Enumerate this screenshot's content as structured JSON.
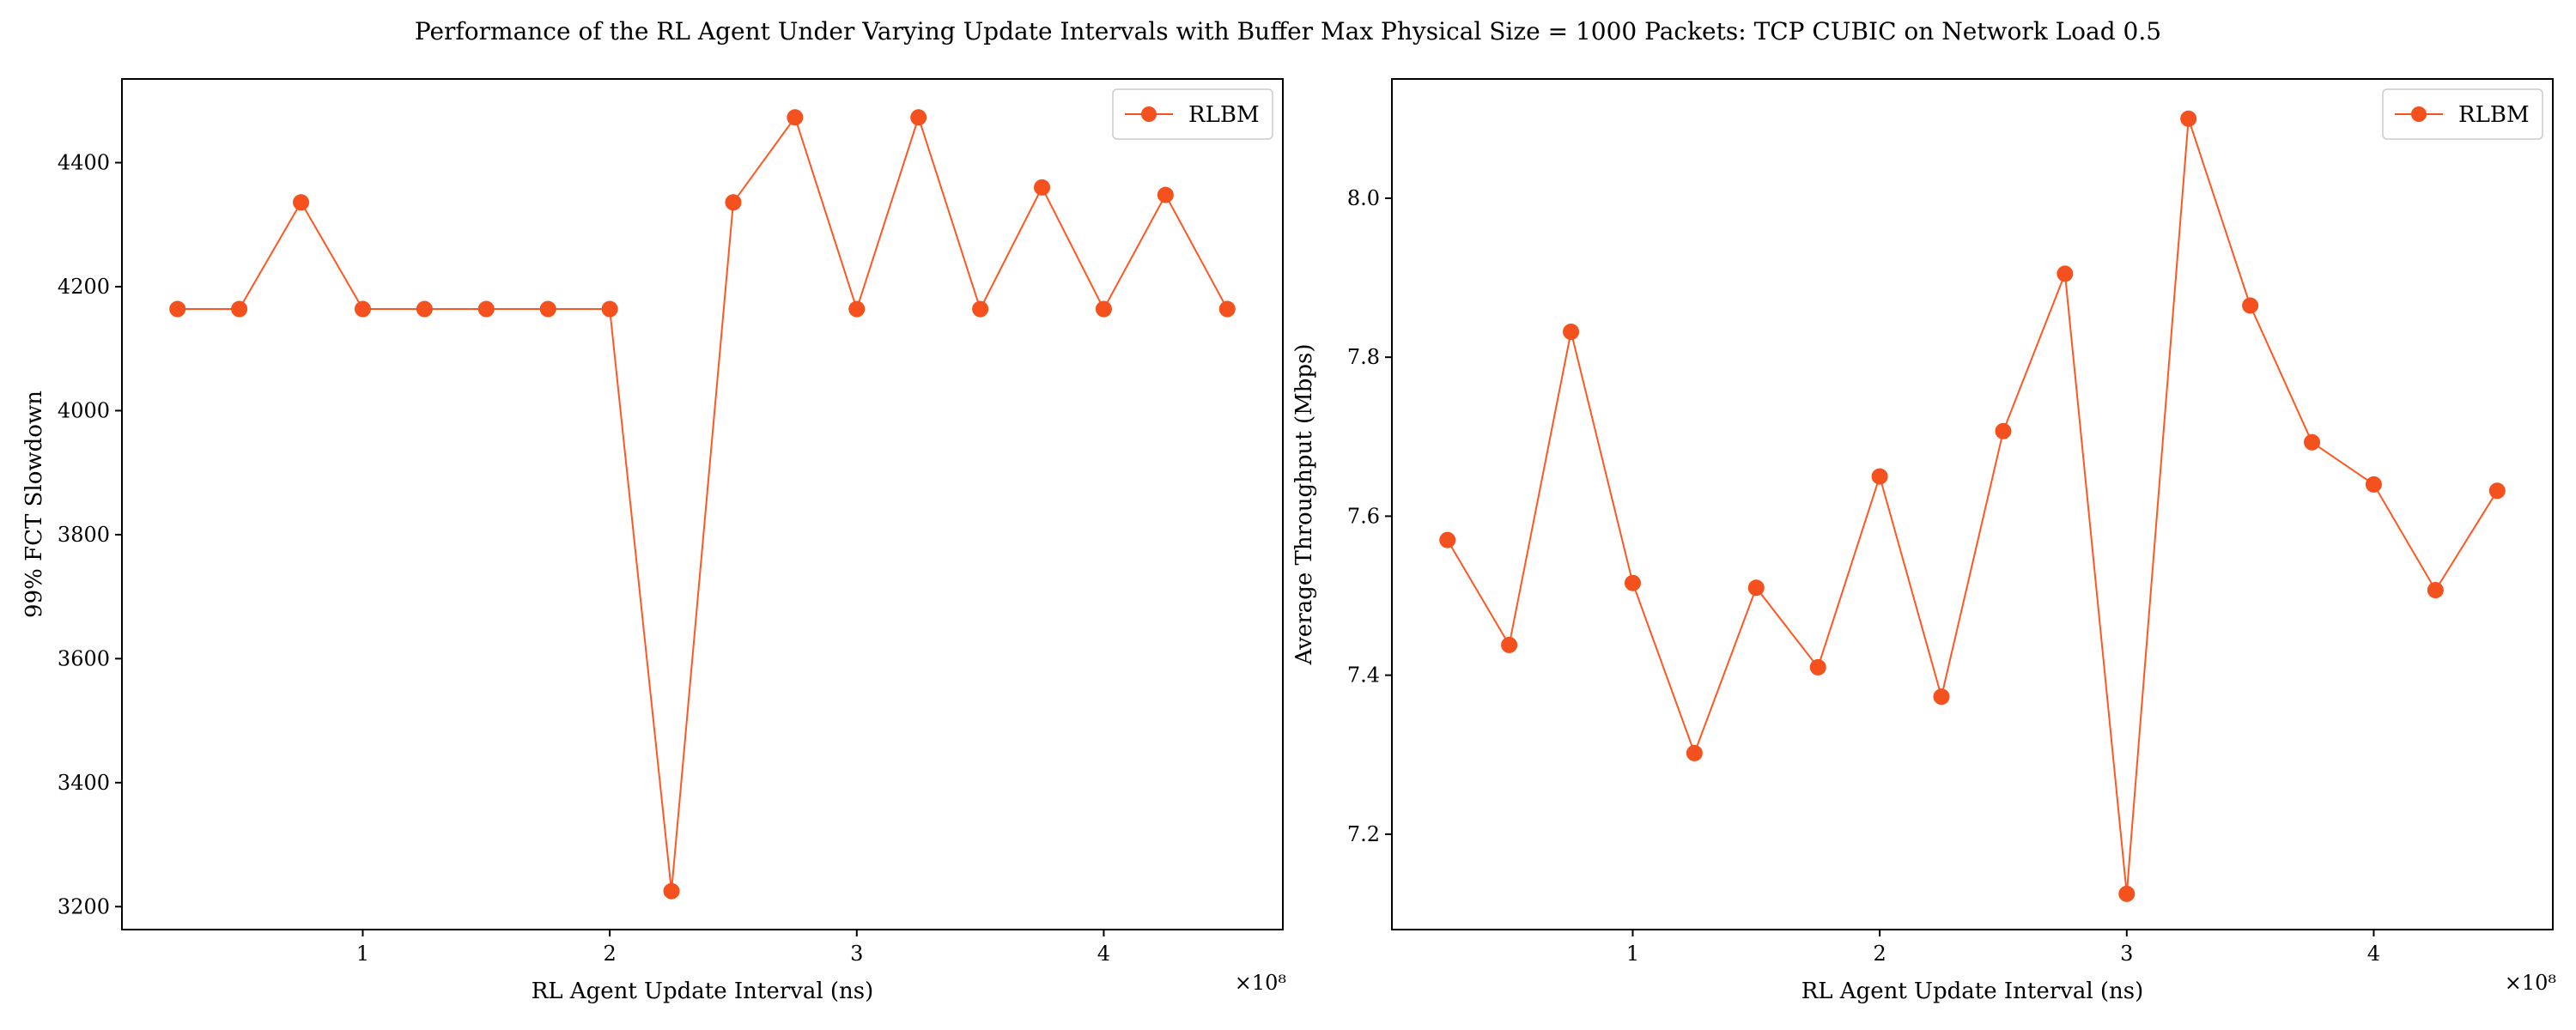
{
  "figure_title": "Performance of the RL Agent Under Varying Update Intervals with Buffer Max Physical Size = 1000 Packets: TCP CUBIC on Network Load 0.5",
  "colors": {
    "series": "#f4511e",
    "axes": "#000000",
    "background": "#ffffff"
  },
  "chart_data": [
    {
      "type": "line",
      "title": "",
      "xlabel": "RL Agent Update Interval (ns)",
      "ylabel": "99% FCT Slowdown",
      "x_offset_text": "×10⁸",
      "x_scale": 100000000,
      "xlim": [
        0.025,
        4.725
      ],
      "ylim": [
        3163,
        4535
      ],
      "xticks": [
        1,
        2,
        3,
        4
      ],
      "yticks": [
        3200,
        3400,
        3600,
        3800,
        4000,
        4200,
        4400
      ],
      "legend": "upper right",
      "series": [
        {
          "name": "RLBM",
          "x": [
            0.25,
            0.5,
            0.75,
            1.0,
            1.25,
            1.5,
            1.75,
            2.0,
            2.25,
            2.5,
            2.75,
            3.0,
            3.25,
            3.5,
            3.75,
            4.0,
            4.25,
            4.5
          ],
          "y": [
            4164,
            4164,
            4336,
            4164,
            4164,
            4164,
            4164,
            4164,
            3225,
            4336,
            4473,
            4164,
            4473,
            4164,
            4360,
            4164,
            4348,
            4164
          ]
        }
      ]
    },
    {
      "type": "line",
      "title": "",
      "xlabel": "RL Agent Update Interval (ns)",
      "ylabel": "Average Throughput (Mbps)",
      "x_offset_text": "×10⁸",
      "x_scale": 100000000,
      "xlim": [
        0.025,
        4.725
      ],
      "ylim": [
        7.08,
        8.15
      ],
      "xticks": [
        1,
        2,
        3,
        4
      ],
      "yticks": [
        7.2,
        7.4,
        7.6,
        7.8,
        8.0
      ],
      "ytick_labels": [
        "7.2",
        "7.4",
        "7.6",
        "7.8",
        "8.0"
      ],
      "legend": "upper right",
      "series": [
        {
          "name": "RLBM",
          "x": [
            0.25,
            0.5,
            0.75,
            1.0,
            1.25,
            1.5,
            1.75,
            2.0,
            2.25,
            2.5,
            2.75,
            3.0,
            3.25,
            3.5,
            3.75,
            4.0,
            4.25,
            4.5
          ],
          "y": [
            7.57,
            7.438,
            7.832,
            7.516,
            7.302,
            7.51,
            7.41,
            7.65,
            7.373,
            7.707,
            7.905,
            7.125,
            8.1,
            7.865,
            7.693,
            7.64,
            7.507,
            7.632
          ]
        }
      ]
    }
  ]
}
